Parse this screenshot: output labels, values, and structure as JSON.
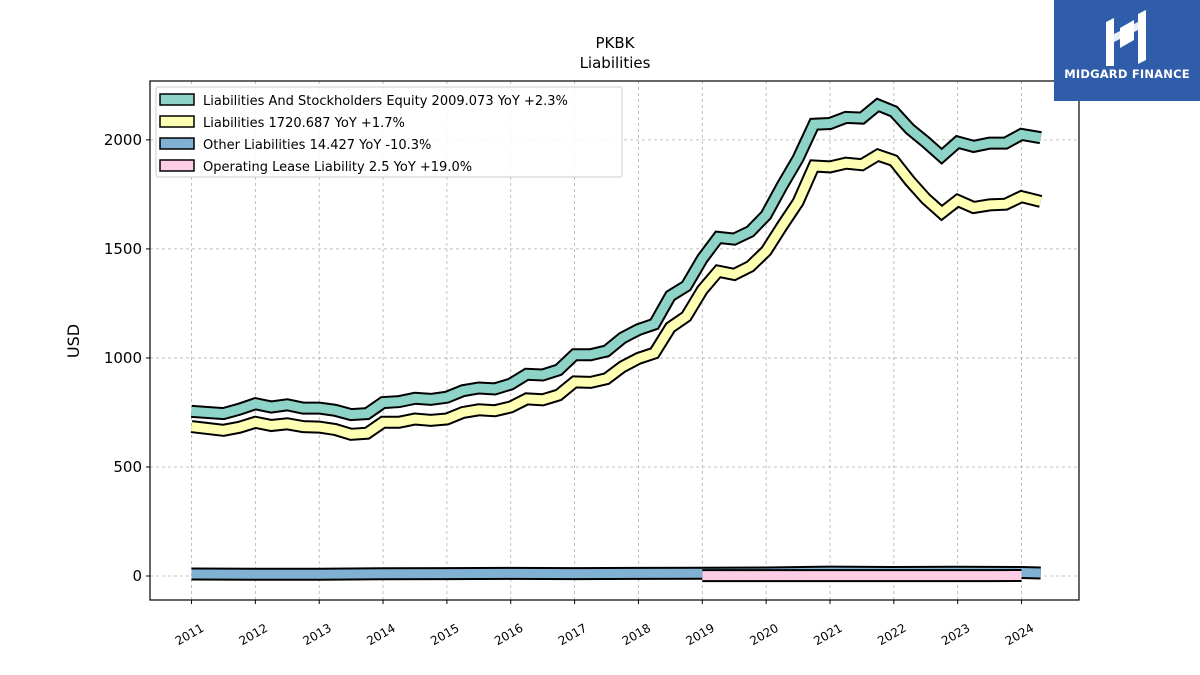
{
  "brand": {
    "name": "MIDGARD FINANCE",
    "logo_color": "#2f5daa"
  },
  "chart_data": {
    "type": "line",
    "title": "PKBK",
    "subtitle": "Liabilities",
    "xlabel": "",
    "ylabel": "USD",
    "ylim": [
      -110,
      2270
    ],
    "xlim": [
      2010.35,
      2024.9
    ],
    "yticks": [
      0,
      500,
      1000,
      1500,
      2000
    ],
    "xticks": [
      "2011",
      "2012",
      "2013",
      "2014",
      "2015",
      "2016",
      "2017",
      "2018",
      "2019",
      "2020",
      "2021",
      "2022",
      "2023",
      "2024"
    ],
    "grid": true,
    "legend_position": "top-left",
    "series": [
      {
        "name": "Liabilities And Stockholders Equity",
        "legend_label": "Liabilities And Stockholders Equity  2009.073 YoY +2.3%",
        "color": "#8dd3c7",
        "x": [
          2011.0,
          2011.5,
          2011.75,
          2012.0,
          2012.25,
          2012.5,
          2012.75,
          2013.0,
          2013.25,
          2013.5,
          2013.75,
          2014.0,
          2014.25,
          2014.5,
          2014.75,
          2015.0,
          2015.25,
          2015.5,
          2015.75,
          2016.0,
          2016.25,
          2016.5,
          2016.75,
          2017.0,
          2017.25,
          2017.5,
          2017.75,
          2018.0,
          2018.25,
          2018.5,
          2018.75,
          2019.0,
          2019.25,
          2019.5,
          2019.75,
          2020.0,
          2020.25,
          2020.5,
          2020.75,
          2021.0,
          2021.25,
          2021.5,
          2021.75,
          2022.0,
          2022.25,
          2022.5,
          2022.75,
          2023.0,
          2023.25,
          2023.5,
          2023.75,
          2024.0,
          2024.3
        ],
        "values": [
          755,
          745,
          765,
          790,
          775,
          785,
          770,
          770,
          760,
          740,
          745,
          795,
          800,
          815,
          810,
          820,
          850,
          862,
          858,
          880,
          925,
          922,
          945,
          1015,
          1015,
          1032,
          1092,
          1130,
          1155,
          1285,
          1330,
          1455,
          1553,
          1545,
          1580,
          1655,
          1790,
          1915,
          2072,
          2075,
          2103,
          2100,
          2160,
          2130,
          2050,
          1990,
          1925,
          1990,
          1970,
          1985,
          1985,
          2025,
          2010
        ]
      },
      {
        "name": "Liabilities",
        "legend_label": "Liabilities  1720.687 YoY +1.7%",
        "color": "#ffffb3",
        "x": [
          2011.0,
          2011.5,
          2011.75,
          2012.0,
          2012.25,
          2012.5,
          2012.75,
          2013.0,
          2013.25,
          2013.5,
          2013.75,
          2014.0,
          2014.25,
          2014.5,
          2014.75,
          2015.0,
          2015.25,
          2015.5,
          2015.75,
          2016.0,
          2016.25,
          2016.5,
          2016.75,
          2017.0,
          2017.25,
          2017.5,
          2017.75,
          2018.0,
          2018.25,
          2018.5,
          2018.75,
          2019.0,
          2019.25,
          2019.5,
          2019.75,
          2020.0,
          2020.25,
          2020.5,
          2020.75,
          2021.0,
          2021.25,
          2021.5,
          2021.75,
          2022.0,
          2022.25,
          2022.5,
          2022.75,
          2023.0,
          2023.25,
          2023.5,
          2023.75,
          2024.0,
          2024.3
        ],
        "values": [
          685,
          668,
          682,
          705,
          690,
          698,
          685,
          683,
          672,
          650,
          655,
          705,
          705,
          720,
          714,
          720,
          750,
          762,
          758,
          775,
          812,
          808,
          830,
          890,
          888,
          905,
          960,
          998,
          1022,
          1140,
          1190,
          1312,
          1398,
          1383,
          1420,
          1490,
          1605,
          1715,
          1880,
          1876,
          1893,
          1886,
          1930,
          1905,
          1812,
          1730,
          1665,
          1722,
          1690,
          1702,
          1705,
          1740,
          1718
        ]
      },
      {
        "name": "Other Liabilities",
        "legend_label": "Other Liabilities  14.427 YoY -10.3%",
        "color": "#80b1d3",
        "x": [
          2011.0,
          2012.0,
          2013.0,
          2014.0,
          2015.0,
          2016.0,
          2017.0,
          2018.0,
          2019.0,
          2020.0,
          2021.0,
          2022.0,
          2023.0,
          2024.0,
          2024.3
        ],
        "values": [
          9,
          8,
          8,
          10,
          11,
          12,
          11,
          12,
          13,
          14,
          18,
          16,
          17,
          16,
          14
        ]
      },
      {
        "name": "Operating Lease Liability",
        "legend_label": "Operating Lease Liability  2.5 YoY +19.0%",
        "color": "#fccde5",
        "x": [
          2019.0,
          2019.75,
          2020.5,
          2021.25,
          2022.0,
          2022.75,
          2023.5,
          2024.0
        ],
        "values": [
          2,
          2,
          2,
          2,
          2,
          2,
          2,
          2.5
        ]
      }
    ]
  }
}
